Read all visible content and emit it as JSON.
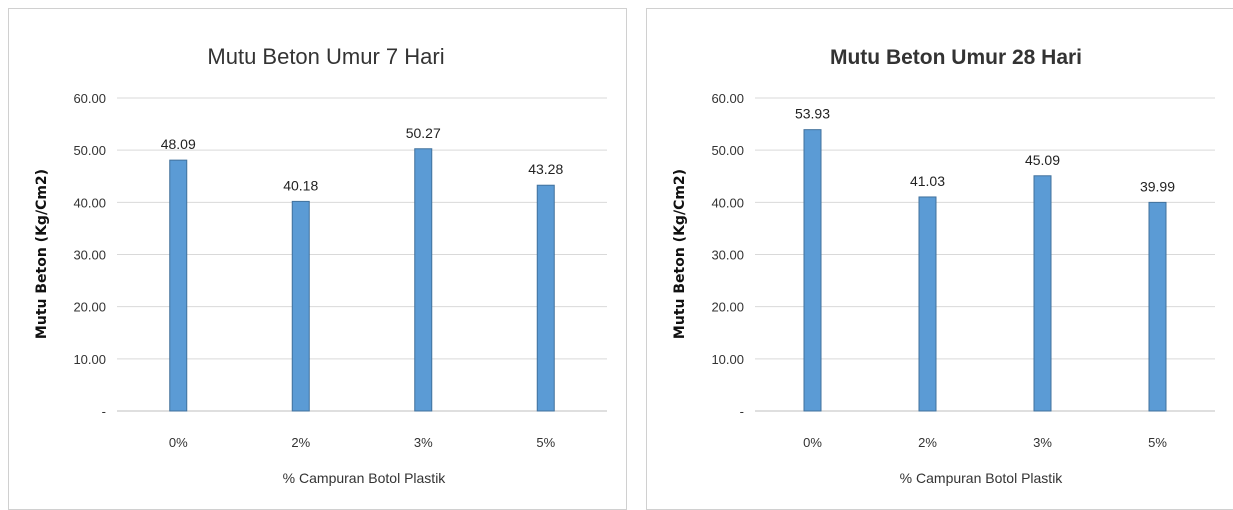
{
  "chart_data": [
    {
      "type": "bar",
      "title": "Mutu Beton Umur 7 Hari",
      "title_bold": false,
      "xlabel": "% Campuran Botol Plastik",
      "ylabel": "Mutu Beton (Kg/Cm2)",
      "categories": [
        "0%",
        "2%",
        "3%",
        "5%"
      ],
      "values": [
        48.09,
        40.18,
        50.27,
        43.28
      ],
      "value_labels": [
        "48.09",
        "40.18",
        "50.27",
        "43.28"
      ],
      "ylim": [
        0,
        60
      ],
      "yticks": [
        "-",
        "10.00",
        "20.00",
        "30.00",
        "40.00",
        "50.00",
        "60.00"
      ],
      "grid": true,
      "bar_color": "#5b9bd5"
    },
    {
      "type": "bar",
      "title": "Mutu Beton Umur 28 Hari",
      "title_bold": true,
      "xlabel": "% Campuran Botol Plastik",
      "ylabel": "Mutu Beton (Kg/Cm2)",
      "categories": [
        "0%",
        "2%",
        "3%",
        "5%"
      ],
      "values": [
        53.93,
        41.03,
        45.09,
        39.99
      ],
      "value_labels": [
        "53.93",
        "41.03",
        "45.09",
        "39.99"
      ],
      "ylim": [
        0,
        60
      ],
      "yticks": [
        "-",
        "10.00",
        "20.00",
        "30.00",
        "40.00",
        "50.00",
        "60.00"
      ],
      "grid": true,
      "bar_color": "#5b9bd5"
    }
  ]
}
